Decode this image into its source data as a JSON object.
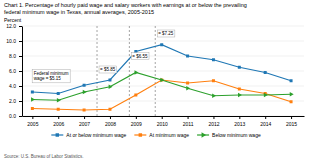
{
  "chart_data": {
    "type": "line",
    "title": "Chart 1. Percentage of hourly paid wage and salary workers with earnings at or below the prevailing\nfederal minimum wage in Texas, annual averages, 2005-2015",
    "ylabel": "Percent",
    "x": [
      2005,
      2006,
      2007,
      2008,
      2009,
      2010,
      2011,
      2012,
      2013,
      2014,
      2015
    ],
    "series": [
      {
        "name": "At or below minimum wage",
        "marker": "square",
        "values": [
          3.2,
          3.0,
          4.1,
          4.8,
          8.6,
          9.5,
          8.0,
          7.5,
          6.5,
          5.8,
          4.7
        ]
      },
      {
        "name": "At minimum wage",
        "marker": "square",
        "values": [
          1.0,
          0.9,
          0.8,
          0.9,
          2.8,
          4.8,
          4.4,
          4.7,
          3.6,
          3.0,
          1.9
        ]
      },
      {
        "name": "Below minimum wage",
        "marker": "triangle-right",
        "values": [
          2.2,
          2.1,
          3.2,
          3.9,
          5.8,
          4.8,
          3.7,
          2.7,
          2.8,
          2.8,
          2.9
        ]
      }
    ],
    "xlim": [
      2004.6,
      2015.5
    ],
    "xticks": [
      2005,
      2006,
      2007,
      2008,
      2009,
      2010,
      2011,
      2012,
      2013,
      2014,
      2015
    ],
    "ylim": [
      0,
      12.0
    ],
    "yticks": [
      {
        "value": 0,
        "label": "0.0"
      },
      {
        "value": 2,
        "label": "2.0"
      },
      {
        "value": 4,
        "label": "4.0"
      },
      {
        "value": 6,
        "label": "6.0"
      },
      {
        "value": 8,
        "label": "8.0"
      },
      {
        "value": 10,
        "label": "10.0"
      },
      {
        "value": 12,
        "label": "12.0"
      }
    ],
    "vlines": [
      {
        "x": 2007.5,
        "label": "= $5.85",
        "y": 6.2
      },
      {
        "x": 2008.75,
        "label": "= $6.55",
        "y": 8.0
      },
      {
        "x": 2009.75,
        "label": "= $7.25",
        "y": 11.0
      }
    ],
    "annotations": [
      {
        "text": "Federal minimum\nwage = $5.15",
        "x": 2005.05,
        "y": 5.3
      }
    ],
    "source": "Source: U.S. Bureau of Labor Statistics.",
    "grid": "y",
    "legend": "bottom"
  }
}
